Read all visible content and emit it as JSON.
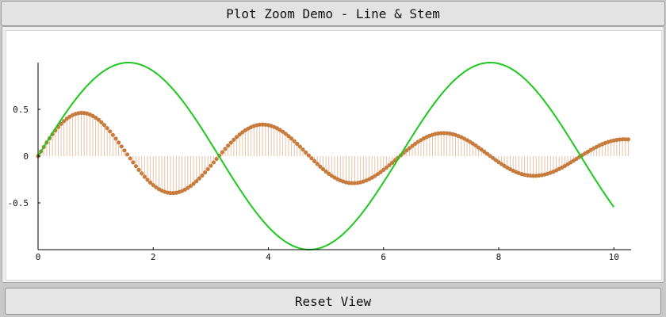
{
  "window": {
    "title": "Plot Zoom Demo - Line & Stem"
  },
  "controls": {
    "reset_label": "Reset View"
  },
  "colors": {
    "line": "#1ec81e",
    "stem": "#c8783a",
    "marker": "#c77b3c",
    "axis": "#000000"
  },
  "chart_data": {
    "type": "line",
    "xlim": [
      0,
      10.3
    ],
    "ylim": [
      -1,
      1
    ],
    "xticks": [
      0,
      2,
      4,
      6,
      8,
      10
    ],
    "xtick_labels": [
      "0",
      "2",
      "4",
      "6",
      "8",
      "10"
    ],
    "yticks": [
      0.5,
      0,
      -0.5
    ],
    "ytick_labels": [
      "0.5",
      "0",
      "-0.5"
    ],
    "grid": false,
    "series": [
      {
        "type": "line",
        "function": "sin(x)",
        "x_range": [
          0,
          10
        ],
        "step": 0.05
      },
      {
        "type": "stem",
        "function": "sin(2x)*exp(-0.1x)/2",
        "x_range": [
          0,
          10.25
        ],
        "step": 0.05
      }
    ]
  }
}
